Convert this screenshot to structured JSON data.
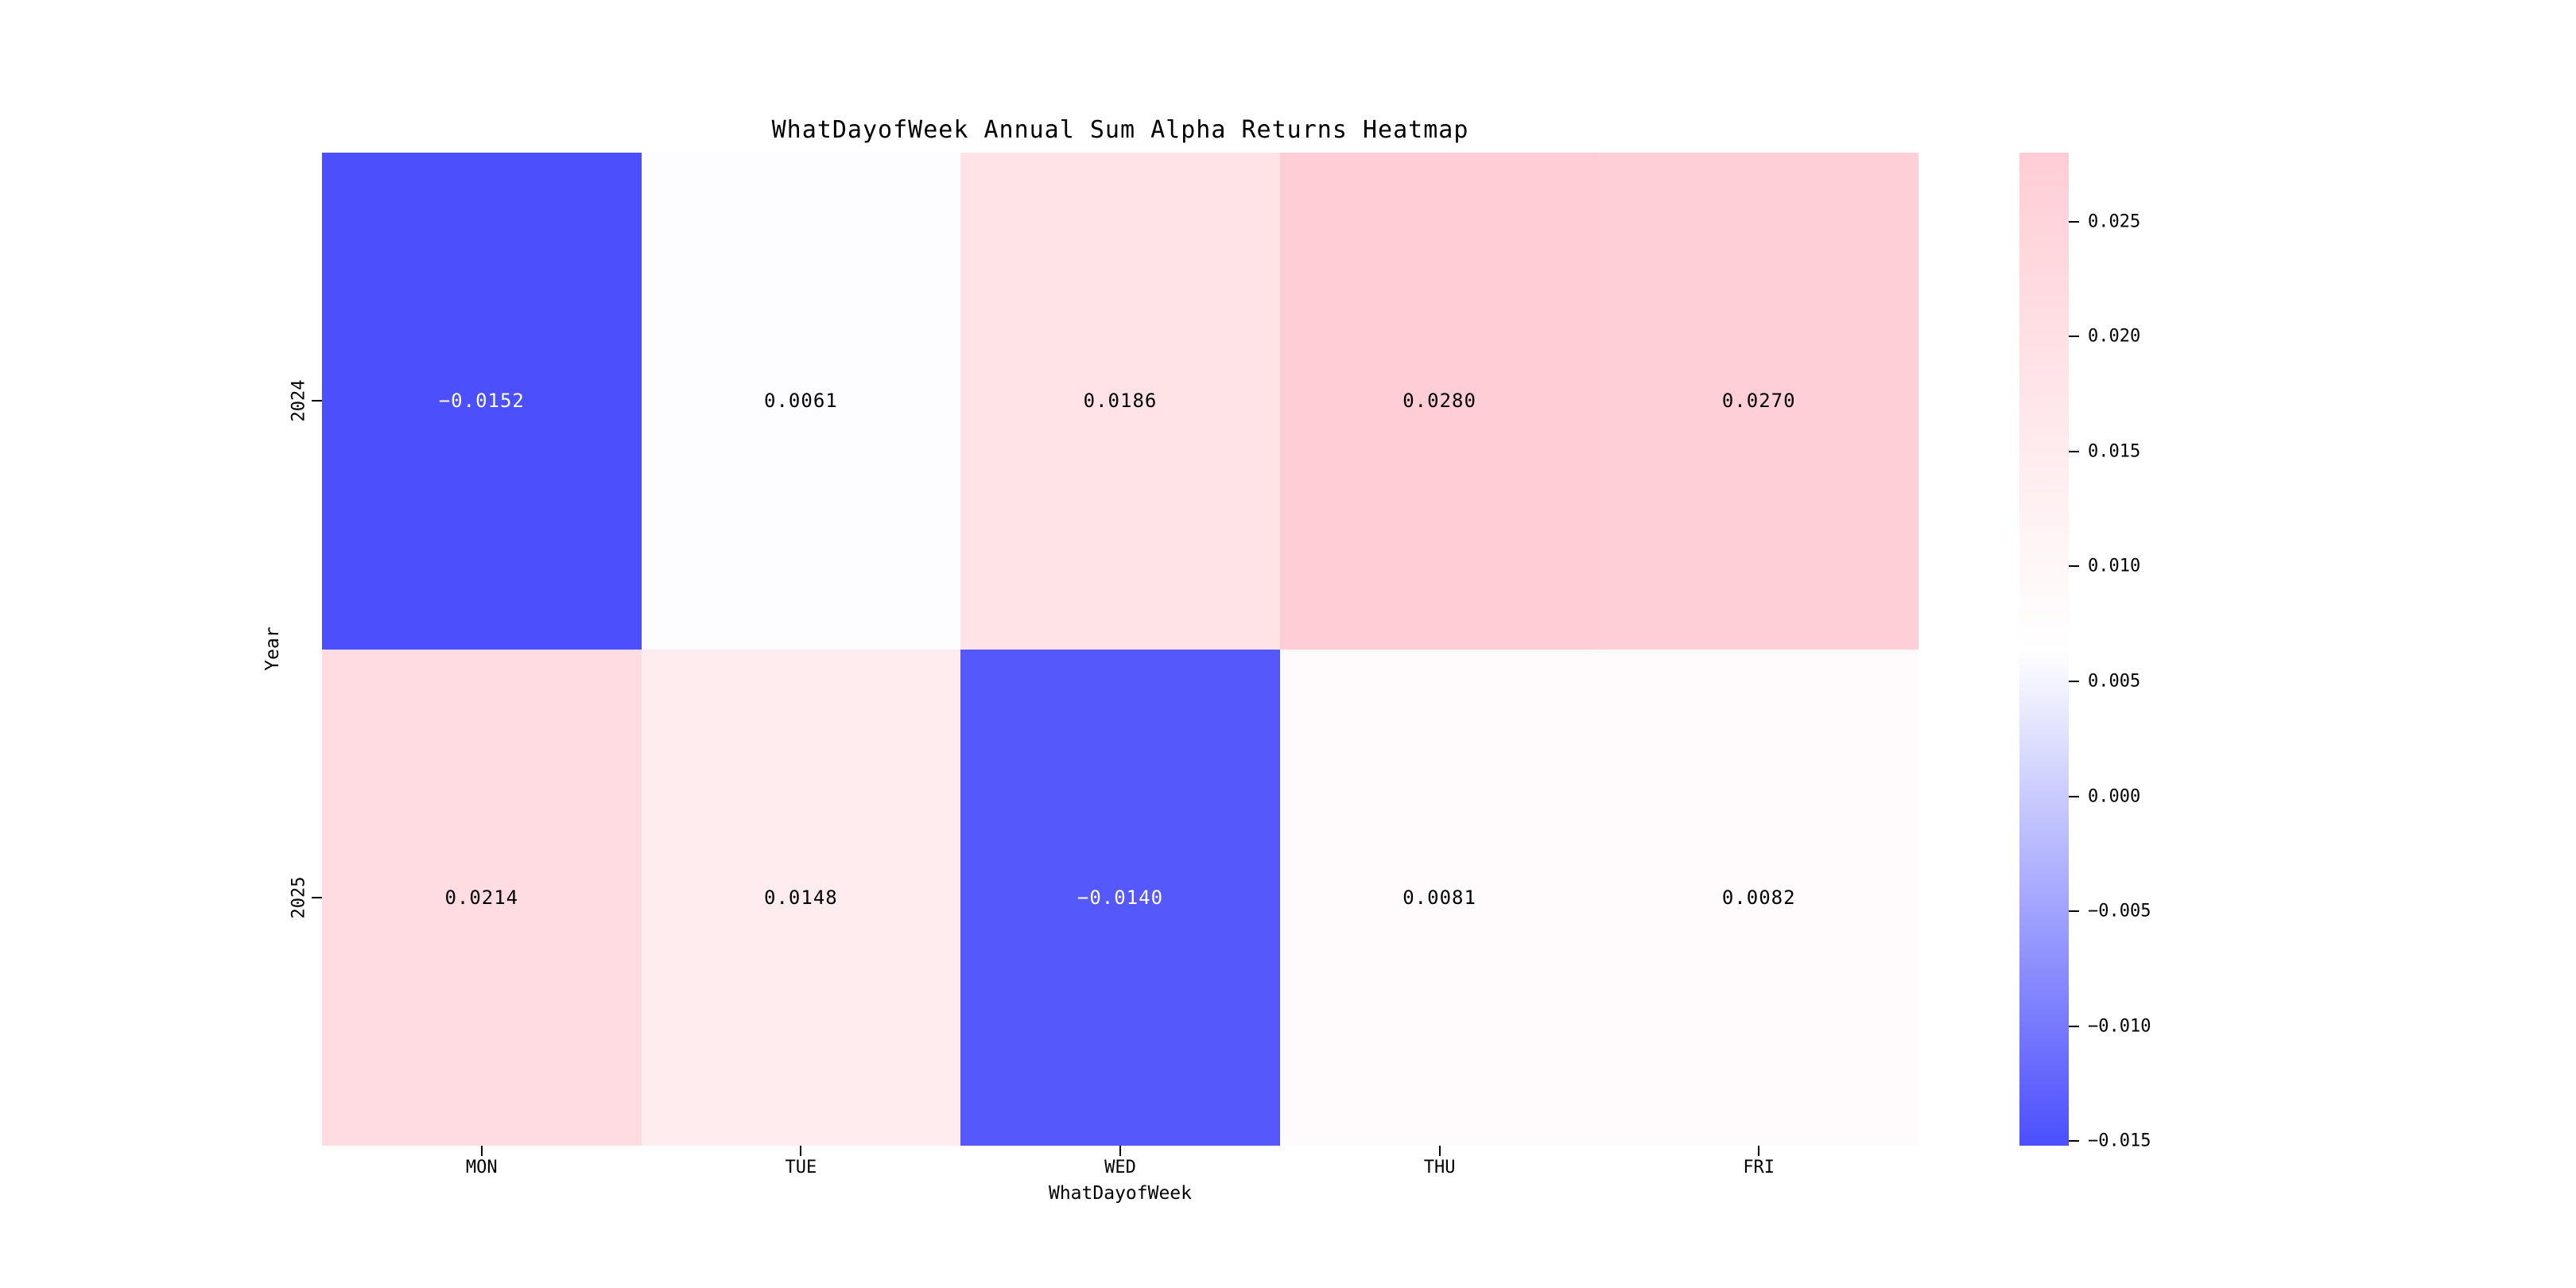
{
  "chart_data": {
    "type": "heatmap",
    "title": "WhatDayofWeek Annual Sum Alpha Returns Heatmap",
    "xlabel": "WhatDayofWeek",
    "ylabel": "Year",
    "x_categories": [
      "MON",
      "TUE",
      "WED",
      "THU",
      "FRI"
    ],
    "y_categories": [
      "2024",
      "2025"
    ],
    "values": [
      [
        -0.0152,
        0.0061,
        0.0186,
        0.028,
        0.027
      ],
      [
        0.0214,
        0.0148,
        -0.014,
        0.0081,
        0.0082
      ]
    ],
    "cell_labels": [
      [
        "−0.0152",
        "0.0061",
        "0.0186",
        "0.0280",
        "0.0270"
      ],
      [
        "0.0214",
        "0.0148",
        "−0.0140",
        "0.0081",
        "0.0082"
      ]
    ],
    "vmin": -0.0152,
    "vmax": 0.028,
    "colormap": {
      "negative": "#4b4ffc",
      "center": "#ffffff",
      "positive": "#ffcdd5"
    },
    "colorbar_tick_values": [
      0.025,
      0.02,
      0.015,
      0.01,
      0.005,
      0.0,
      -0.005,
      -0.01,
      -0.015
    ],
    "colorbar_tick_labels": [
      "0.025",
      "0.020",
      "0.015",
      "0.010",
      "0.005",
      "0.000",
      "−0.005",
      "−0.010",
      "−0.015"
    ],
    "legend_position": "right",
    "grid": false,
    "background": "#ffffff"
  }
}
